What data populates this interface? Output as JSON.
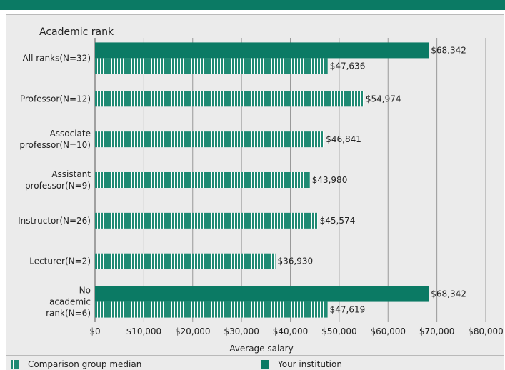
{
  "chart_data": {
    "type": "bar",
    "orientation": "horizontal",
    "title": "Academic rank",
    "xlabel": "Average salary",
    "xlim": [
      0,
      80000
    ],
    "xticks": [
      "$0",
      "$10,000",
      "$20,000",
      "$30,000",
      "$40,000",
      "$50,000",
      "$60,000",
      "$70,000",
      "$80,000"
    ],
    "grid": "vertical",
    "legend_position": "bottom",
    "categories": [
      [
        "All ranks(N=32)"
      ],
      [
        "Professor(N=12)"
      ],
      [
        "Associate",
        "professor(N=10)"
      ],
      [
        "Assistant",
        "professor(N=9)"
      ],
      [
        "Instructor(N=26)"
      ],
      [
        "Lecturer(N=2)"
      ],
      [
        "No",
        "academic",
        "rank(N=6)"
      ]
    ],
    "series": [
      {
        "name": "Your institution",
        "color": "#0b7a64",
        "values": [
          68342,
          null,
          null,
          null,
          null,
          null,
          68342
        ],
        "labels": [
          "$68,342",
          null,
          null,
          null,
          null,
          null,
          "$68,342"
        ]
      },
      {
        "name": "Comparison group median",
        "color": "#1e8a73",
        "pattern": "striped",
        "values": [
          47636,
          54974,
          46841,
          43980,
          45574,
          36930,
          47619
        ],
        "labels": [
          "$47,636",
          "$54,974",
          "$46,841",
          "$43,980",
          "$45,574",
          "$36,930",
          "$47,619"
        ]
      }
    ]
  },
  "legend": {
    "comparison": "Comparison group median",
    "institution": "Your institution"
  }
}
